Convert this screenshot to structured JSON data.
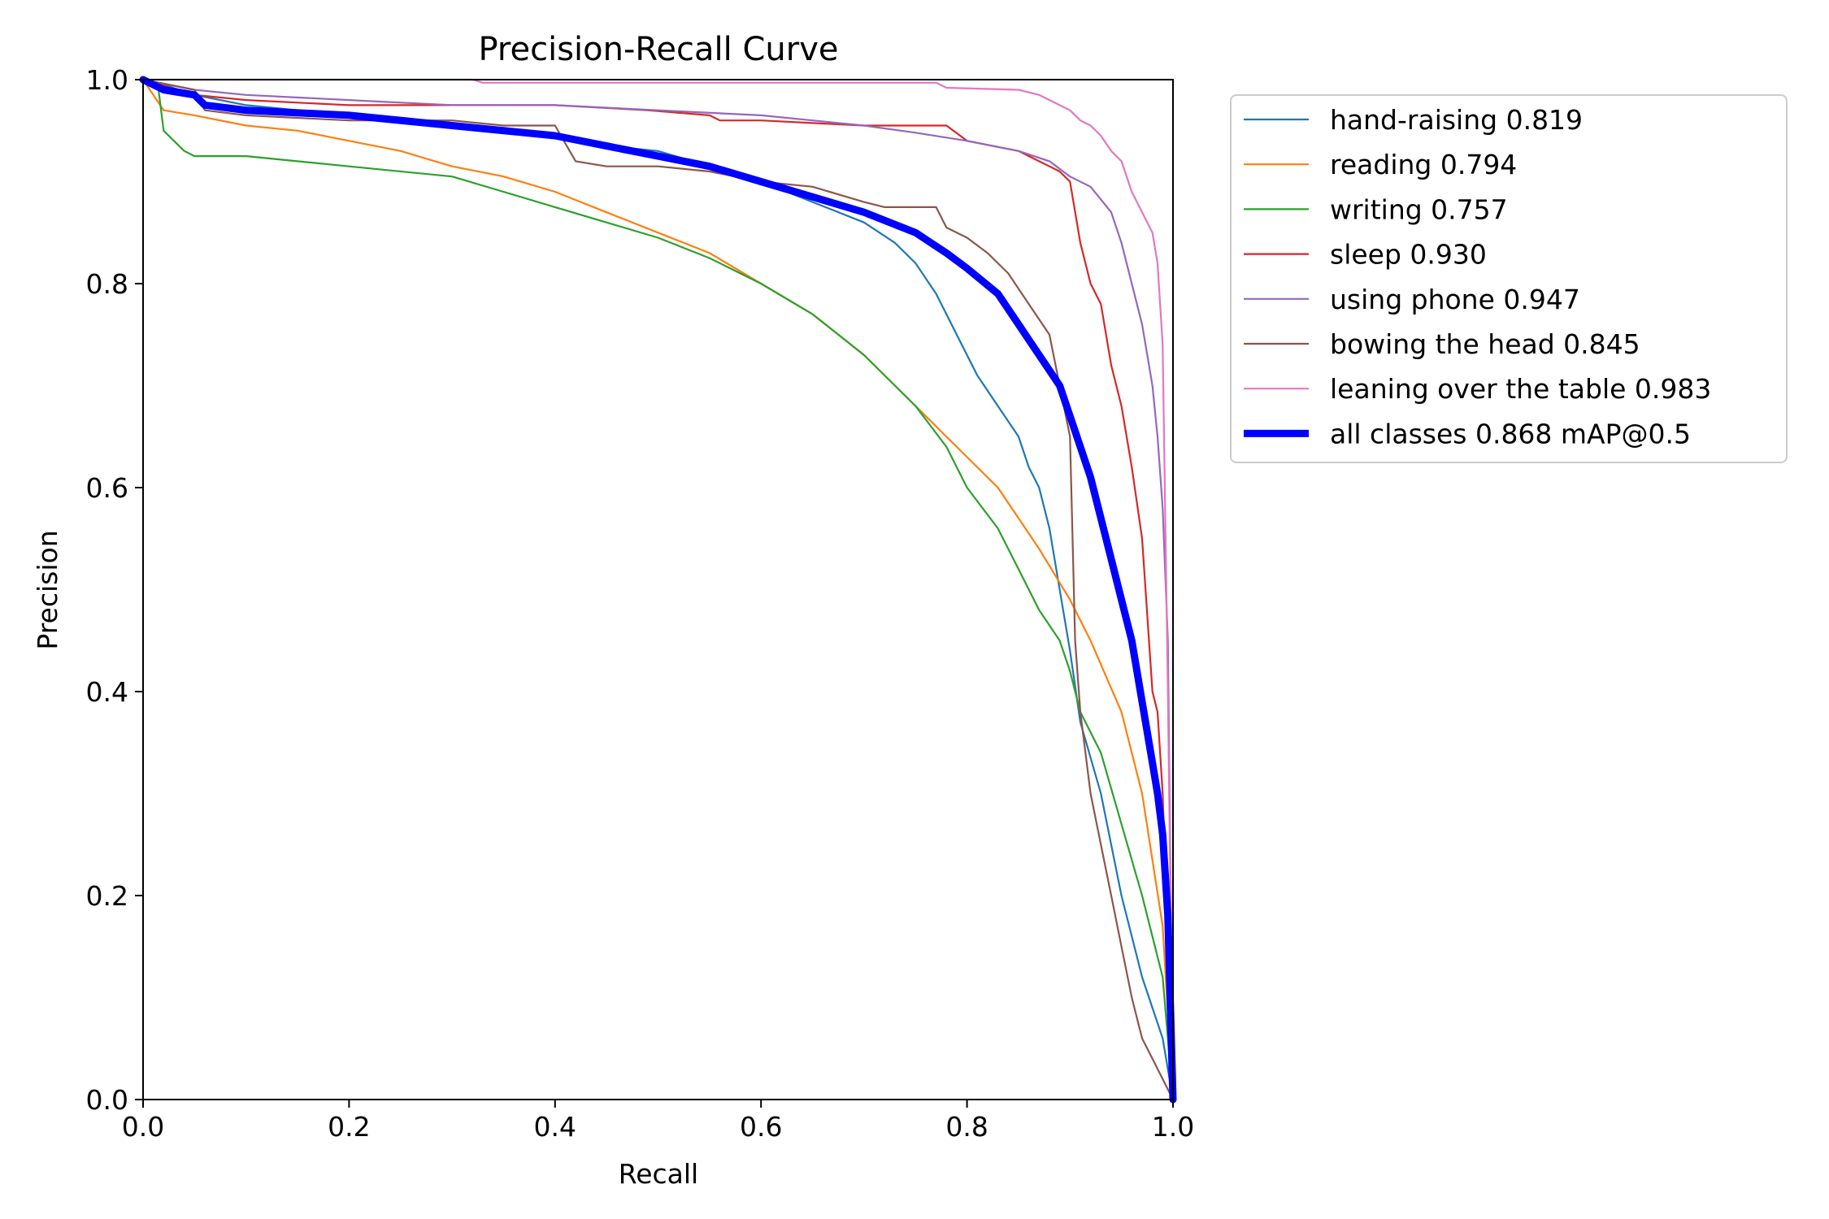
{
  "chart_data": {
    "type": "line",
    "title": "Precision-Recall Curve",
    "xlabel": "Recall",
    "ylabel": "Precision",
    "xlim": [
      0,
      1
    ],
    "ylim": [
      0,
      1
    ],
    "xticks": [
      "0.0",
      "0.2",
      "0.4",
      "0.6",
      "0.8",
      "1.0"
    ],
    "yticks": [
      "0.0",
      "0.2",
      "0.4",
      "0.6",
      "0.8",
      "1.0"
    ],
    "grid": false,
    "legend_position": "outside-right",
    "series": [
      {
        "name": "hand-raising 0.819",
        "color": "#1f77b4",
        "width": "thin",
        "x": [
          0.0,
          0.02,
          0.05,
          0.1,
          0.2,
          0.3,
          0.4,
          0.45,
          0.5,
          0.55,
          0.6,
          0.65,
          0.7,
          0.73,
          0.75,
          0.77,
          0.79,
          0.8,
          0.81,
          0.83,
          0.85,
          0.86,
          0.87,
          0.88,
          0.89,
          0.9,
          0.91,
          0.93,
          0.95,
          0.97,
          0.99,
          1.0
        ],
        "y": [
          1.0,
          0.995,
          0.985,
          0.975,
          0.965,
          0.955,
          0.945,
          0.935,
          0.93,
          0.915,
          0.9,
          0.88,
          0.86,
          0.84,
          0.82,
          0.79,
          0.75,
          0.73,
          0.71,
          0.68,
          0.65,
          0.62,
          0.6,
          0.56,
          0.5,
          0.44,
          0.37,
          0.3,
          0.2,
          0.12,
          0.06,
          0.0
        ]
      },
      {
        "name": "reading 0.794",
        "color": "#ff7f0e",
        "width": "thin",
        "x": [
          0.0,
          0.02,
          0.05,
          0.1,
          0.15,
          0.2,
          0.25,
          0.3,
          0.35,
          0.4,
          0.45,
          0.5,
          0.55,
          0.6,
          0.65,
          0.7,
          0.75,
          0.8,
          0.83,
          0.85,
          0.87,
          0.9,
          0.92,
          0.95,
          0.97,
          0.99,
          1.0
        ],
        "y": [
          1.0,
          0.97,
          0.965,
          0.955,
          0.95,
          0.94,
          0.93,
          0.915,
          0.905,
          0.89,
          0.87,
          0.85,
          0.83,
          0.8,
          0.77,
          0.73,
          0.68,
          0.63,
          0.6,
          0.57,
          0.54,
          0.49,
          0.45,
          0.38,
          0.3,
          0.17,
          0.0
        ]
      },
      {
        "name": "writing 0.757",
        "color": "#2ca02c",
        "width": "thin",
        "x": [
          0.0,
          0.015,
          0.02,
          0.04,
          0.05,
          0.1,
          0.2,
          0.3,
          0.35,
          0.4,
          0.45,
          0.5,
          0.55,
          0.6,
          0.65,
          0.7,
          0.75,
          0.78,
          0.8,
          0.83,
          0.85,
          0.87,
          0.89,
          0.9,
          0.91,
          0.93,
          0.95,
          0.97,
          0.99,
          1.0
        ],
        "y": [
          1.0,
          0.99,
          0.95,
          0.93,
          0.925,
          0.925,
          0.915,
          0.905,
          0.89,
          0.875,
          0.86,
          0.845,
          0.825,
          0.8,
          0.77,
          0.73,
          0.68,
          0.64,
          0.6,
          0.56,
          0.52,
          0.48,
          0.45,
          0.42,
          0.38,
          0.34,
          0.27,
          0.2,
          0.12,
          0.0
        ]
      },
      {
        "name": "sleep 0.930",
        "color": "#d62728",
        "width": "thin",
        "x": [
          0.0,
          0.05,
          0.1,
          0.2,
          0.3,
          0.4,
          0.49,
          0.55,
          0.56,
          0.6,
          0.7,
          0.78,
          0.8,
          0.85,
          0.88,
          0.89,
          0.9,
          0.91,
          0.92,
          0.93,
          0.94,
          0.95,
          0.96,
          0.97,
          0.98,
          0.985,
          0.99,
          1.0
        ],
        "y": [
          1.0,
          0.985,
          0.98,
          0.975,
          0.975,
          0.975,
          0.97,
          0.965,
          0.96,
          0.96,
          0.955,
          0.955,
          0.94,
          0.93,
          0.915,
          0.91,
          0.9,
          0.84,
          0.8,
          0.78,
          0.72,
          0.68,
          0.62,
          0.55,
          0.4,
          0.38,
          0.3,
          0.0
        ]
      },
      {
        "name": "using phone 0.947",
        "color": "#9467bd",
        "width": "thin",
        "x": [
          0.0,
          0.05,
          0.1,
          0.2,
          0.3,
          0.4,
          0.5,
          0.6,
          0.65,
          0.7,
          0.75,
          0.8,
          0.85,
          0.88,
          0.9,
          0.92,
          0.94,
          0.95,
          0.96,
          0.97,
          0.98,
          0.985,
          0.99,
          0.995,
          1.0
        ],
        "y": [
          1.0,
          0.99,
          0.985,
          0.98,
          0.975,
          0.975,
          0.97,
          0.965,
          0.96,
          0.955,
          0.948,
          0.94,
          0.93,
          0.92,
          0.905,
          0.895,
          0.87,
          0.84,
          0.8,
          0.76,
          0.7,
          0.65,
          0.58,
          0.45,
          0.0
        ]
      },
      {
        "name": "bowing the head 0.845",
        "color": "#8c564b",
        "width": "thin",
        "x": [
          0.0,
          0.05,
          0.06,
          0.1,
          0.2,
          0.3,
          0.35,
          0.4,
          0.42,
          0.45,
          0.5,
          0.55,
          0.6,
          0.65,
          0.7,
          0.72,
          0.77,
          0.78,
          0.8,
          0.82,
          0.84,
          0.86,
          0.88,
          0.89,
          0.9,
          0.905,
          0.91,
          0.92,
          0.93,
          0.94,
          0.95,
          0.96,
          0.97,
          0.98,
          1.0
        ],
        "y": [
          1.0,
          0.99,
          0.97,
          0.965,
          0.96,
          0.96,
          0.955,
          0.955,
          0.92,
          0.915,
          0.915,
          0.91,
          0.9,
          0.895,
          0.88,
          0.875,
          0.875,
          0.855,
          0.845,
          0.83,
          0.81,
          0.78,
          0.75,
          0.7,
          0.65,
          0.45,
          0.38,
          0.3,
          0.25,
          0.2,
          0.15,
          0.1,
          0.06,
          0.04,
          0.0
        ]
      },
      {
        "name": "leaning over the table 0.983",
        "color": "#e377c2",
        "width": "thin",
        "x": [
          0.0,
          0.1,
          0.2,
          0.32,
          0.33,
          0.5,
          0.6,
          0.7,
          0.77,
          0.78,
          0.85,
          0.87,
          0.88,
          0.9,
          0.91,
          0.92,
          0.93,
          0.94,
          0.95,
          0.96,
          0.97,
          0.98,
          0.985,
          0.99,
          0.995,
          1.0
        ],
        "y": [
          1.0,
          1.0,
          1.0,
          1.0,
          0.997,
          0.997,
          0.997,
          0.997,
          0.997,
          0.992,
          0.99,
          0.985,
          0.98,
          0.97,
          0.96,
          0.955,
          0.945,
          0.93,
          0.92,
          0.89,
          0.87,
          0.85,
          0.82,
          0.74,
          0.4,
          0.0
        ]
      },
      {
        "name": "all classes 0.868 mAP@0.5",
        "color": "#0000ff",
        "width": "thick",
        "x": [
          0.0,
          0.02,
          0.05,
          0.06,
          0.1,
          0.2,
          0.3,
          0.4,
          0.45,
          0.5,
          0.55,
          0.6,
          0.65,
          0.7,
          0.75,
          0.78,
          0.8,
          0.83,
          0.85,
          0.87,
          0.89,
          0.9,
          0.91,
          0.92,
          0.93,
          0.94,
          0.95,
          0.96,
          0.97,
          0.98,
          0.985,
          0.99,
          0.995,
          1.0
        ],
        "y": [
          1.0,
          0.99,
          0.985,
          0.975,
          0.97,
          0.965,
          0.955,
          0.945,
          0.935,
          0.925,
          0.915,
          0.9,
          0.885,
          0.87,
          0.85,
          0.83,
          0.815,
          0.79,
          0.76,
          0.73,
          0.7,
          0.67,
          0.64,
          0.61,
          0.57,
          0.53,
          0.49,
          0.45,
          0.39,
          0.33,
          0.3,
          0.26,
          0.18,
          0.0
        ]
      }
    ]
  }
}
